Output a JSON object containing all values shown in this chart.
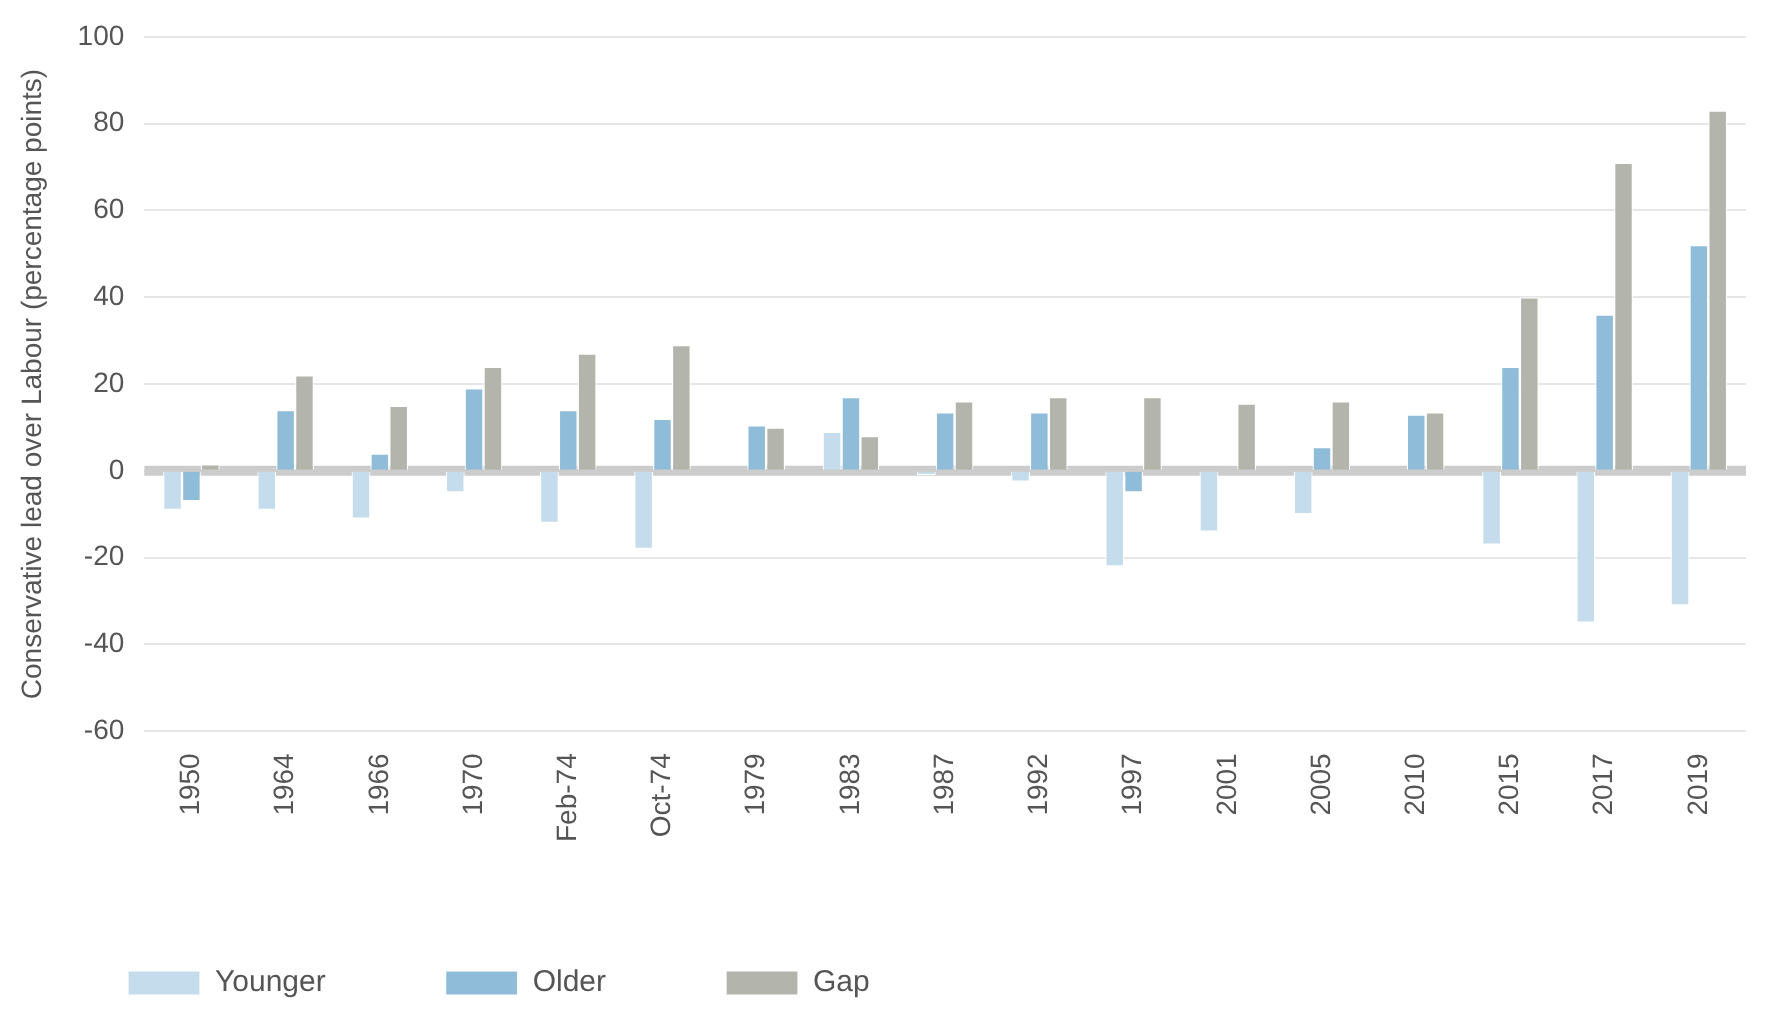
{
  "chart_data": {
    "type": "bar",
    "ylabel": "Conservative lead over Labour (percentage points)",
    "categories": [
      "1950",
      "1964",
      "1966",
      "1970",
      "Feb-74",
      "Oct-74",
      "1979",
      "1983",
      "1987",
      "1992",
      "1997",
      "2001",
      "2005",
      "2010",
      "2015",
      "2017",
      "2019"
    ],
    "series": [
      {
        "name": "Younger",
        "color": "#c5dced",
        "values": [
          -9,
          -9,
          -11,
          -5,
          -12,
          -18,
          0,
          9,
          -1,
          -2.5,
          -22,
          -14,
          -10,
          0,
          -17,
          -35,
          -31
        ]
      },
      {
        "name": "Older",
        "color": "#8fbcd8",
        "values": [
          -7,
          14,
          4,
          19,
          14,
          12,
          10.5,
          17,
          13.5,
          13.5,
          -5,
          0,
          5.5,
          13,
          24,
          36,
          52
        ]
      },
      {
        "name": "Gap",
        "color": "#b3b5ad",
        "values": [
          1.5,
          22,
          15,
          24,
          27,
          29,
          10,
          8,
          16,
          17,
          17,
          15.5,
          16,
          13.5,
          40,
          71,
          83
        ]
      }
    ],
    "ylim": [
      -60,
      100
    ],
    "yticks": [
      -60,
      -40,
      -20,
      0,
      20,
      40,
      60,
      80,
      100
    ],
    "grid": "y",
    "legend": "bottom left",
    "ref_lines": [
      {
        "axis": "y",
        "value": 0,
        "label": null,
        "color": "#cccccc"
      }
    ]
  }
}
